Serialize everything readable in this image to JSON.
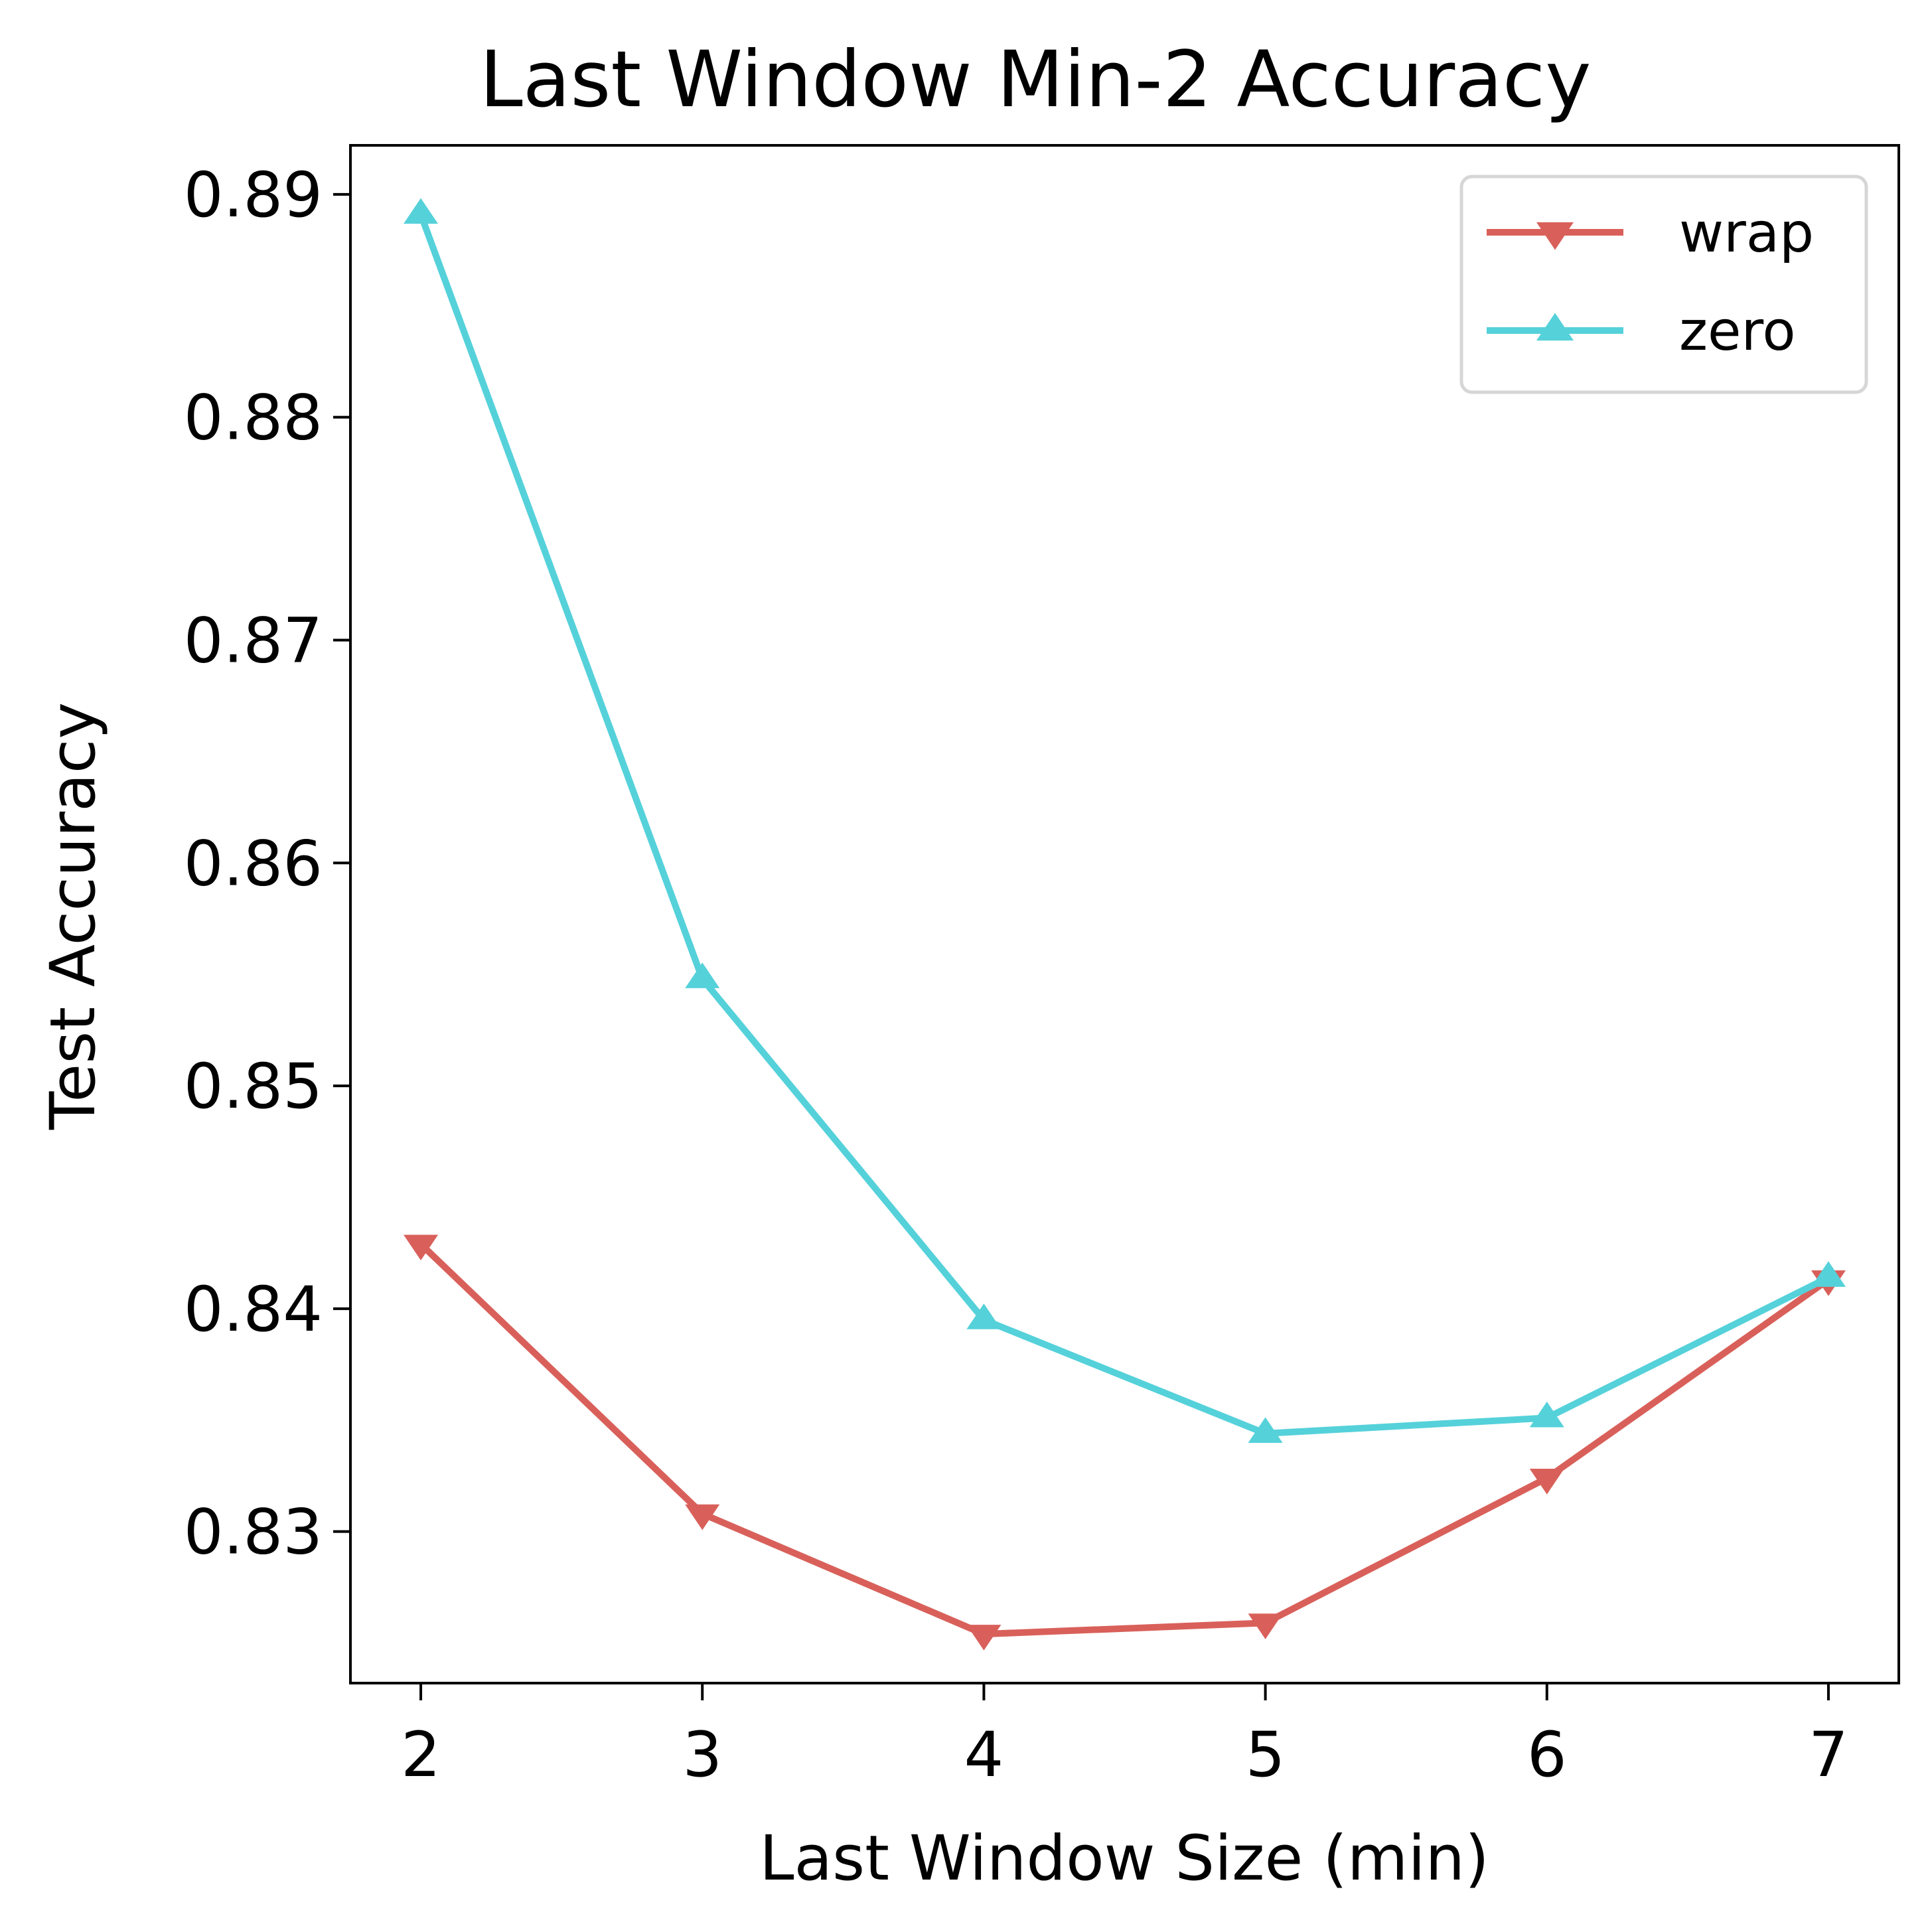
{
  "chart_data": {
    "type": "line",
    "title": "Last Window Min-2 Accuracy",
    "xlabel": "Last Window Size (min)",
    "ylabel": "Test Accuracy",
    "x": [
      2,
      3,
      4,
      5,
      6,
      7
    ],
    "xticks": [
      "2",
      "3",
      "4",
      "5",
      "6",
      "7"
    ],
    "yticks": [
      "0.83",
      "0.84",
      "0.85",
      "0.86",
      "0.87",
      "0.88",
      "0.89"
    ],
    "xlim": [
      1.75,
      7.25
    ],
    "ylim": [
      0.8232,
      0.8922
    ],
    "grid": false,
    "legend_position": "top-right",
    "series": [
      {
        "name": "wrap",
        "color": "#d9605a",
        "marker": "triangle-down",
        "values": [
          0.8429,
          0.8308,
          0.8254,
          0.8259,
          0.8324,
          0.8413
        ]
      },
      {
        "name": "zero",
        "color": "#55d1da",
        "marker": "triangle-up",
        "values": [
          0.8891,
          0.8548,
          0.8395,
          0.8344,
          0.8351,
          0.8414
        ]
      }
    ]
  }
}
